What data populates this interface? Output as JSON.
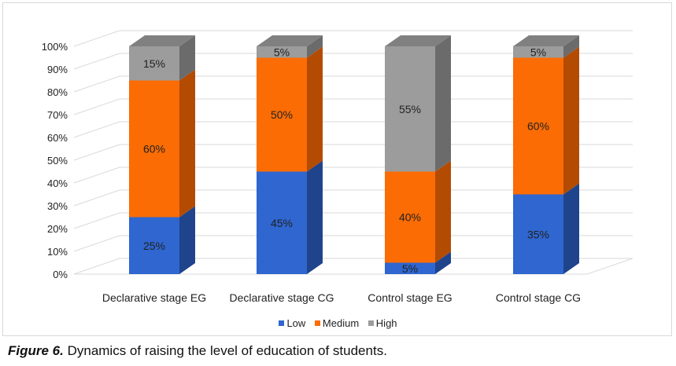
{
  "chart_data": {
    "type": "bar",
    "stacked": true,
    "three_d": true,
    "categories": [
      "Declarative stage EG",
      "Declarative stage CG",
      "Control stage EG",
      "Control stage CG"
    ],
    "series": [
      {
        "name": "Low",
        "values": [
          25,
          45,
          5,
          35
        ],
        "labels": [
          "25%",
          "45%",
          "5%",
          "35%"
        ]
      },
      {
        "name": "Medium",
        "values": [
          60,
          50,
          40,
          60
        ],
        "labels": [
          "60%",
          "50%",
          "40%",
          "60%"
        ]
      },
      {
        "name": "High",
        "values": [
          15,
          5,
          55,
          5
        ],
        "labels": [
          "15%",
          "5%",
          "55%",
          "5%"
        ]
      }
    ],
    "y_ticks": [
      "0%",
      "10%",
      "20%",
      "30%",
      "40%",
      "50%",
      "60%",
      "70%",
      "80%",
      "90%",
      "100%"
    ],
    "ylim": [
      0,
      100
    ],
    "grid": true,
    "legend_position": "bottom",
    "colors": {
      "Low": {
        "front": "#2f66d0",
        "side": "#1f448c",
        "top": "#4f83e0"
      },
      "Medium": {
        "front": "#fb6c04",
        "side": "#b34b02",
        "top": "#ff8c33"
      },
      "High": {
        "front": "#9c9c9c",
        "side": "#6b6b6b",
        "top": "#808080"
      }
    }
  },
  "caption": {
    "label": "Figure 6.",
    "text": " Dynamics of raising the level of education of students."
  }
}
